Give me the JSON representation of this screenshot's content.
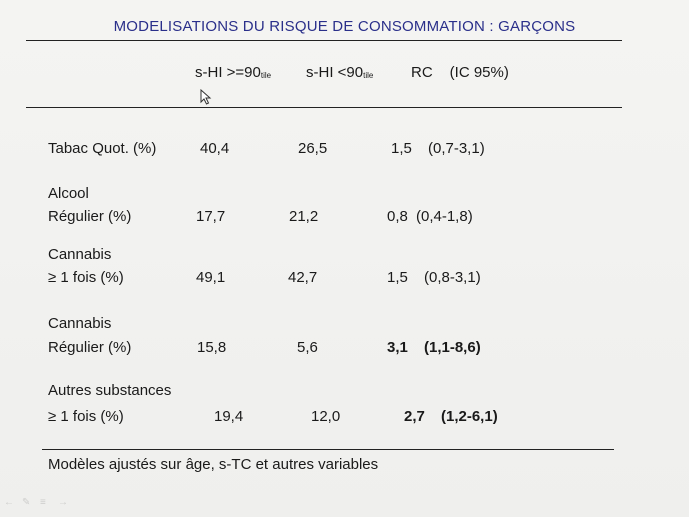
{
  "title": "MODELISATIONS DU RISQUE DE CONSOMMATION : GARÇONS",
  "columns": {
    "col1_main": "s-HI >=90",
    "col1_sub": "tile",
    "col2_main": "s-HI <90",
    "col2_sub": "tile",
    "col3_rc": "RC",
    "col3_ic": "(IC 95%)"
  },
  "rows": [
    {
      "label_line1": "Tabac Quot. (%)",
      "label_line2": "",
      "v1": "40,4",
      "v2": "26,5",
      "rc": "1,5",
      "ic": "(0,7-3,1)",
      "bold": false
    },
    {
      "label_line1": "Alcool",
      "label_line2": "Régulier (%)",
      "v1": "17,7",
      "v2": "21,2",
      "rc": "0,8",
      "ic": "(0,4-1,8)",
      "bold": false
    },
    {
      "label_line1": "Cannabis",
      "label_line2": "≥ 1 fois (%)",
      "v1": "49,1",
      "v2": "42,7",
      "rc": "1,5",
      "ic": "(0,8-3,1)",
      "bold": false
    },
    {
      "label_line1": "Cannabis",
      "label_line2": "Régulier (%)",
      "v1": "15,8",
      "v2": "5,6",
      "rc": "3,1",
      "ic": "(1,1-8,6)",
      "bold": true
    },
    {
      "label_line1": "Autres substances",
      "label_line2": "≥ 1 fois (%)",
      "v1": "19,4",
      "v2": "12,0",
      "rc": "2,7",
      "ic": "(1,2-6,1)",
      "bold": true
    }
  ],
  "footer": "Modèles ajustés sur âge, s-TC et autres variables",
  "icons": {
    "cursor": "mouse-pointer-icon",
    "toolbar": [
      "arrow-icon",
      "pen-icon",
      "menu-icon",
      "slide-nav-icon"
    ]
  },
  "colors": {
    "title": "#2a2f8a",
    "text": "#1a1a1a",
    "background": "#f2f2f0"
  }
}
